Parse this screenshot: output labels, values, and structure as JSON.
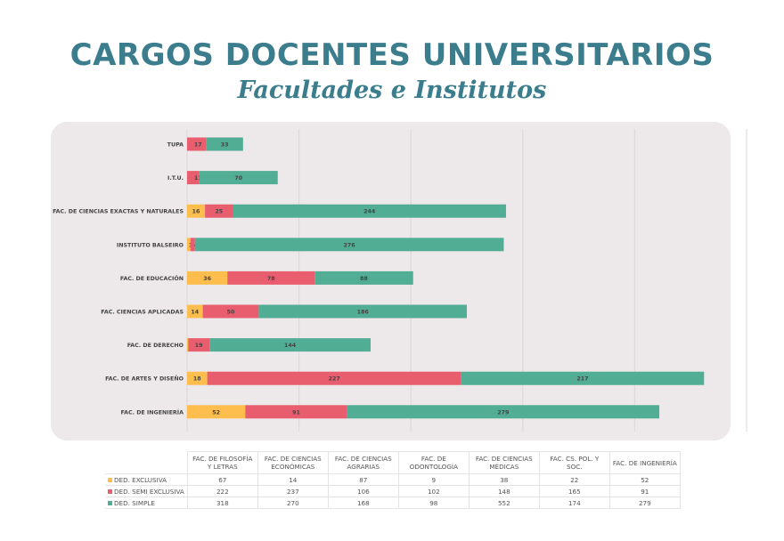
{
  "title": "CARGOS DOCENTES UNIVERSITARIOS",
  "subtitle": "Facultades e Institutos",
  "colors": {
    "exclusiva": "#fdbe4e",
    "semi": "#e95e6f",
    "simple": "#52ad95",
    "title": "#3b7d8d"
  },
  "chart_data": {
    "type": "bar",
    "orientation": "horizontal",
    "stacked": true,
    "grid": true,
    "xlim": [
      0,
      500
    ],
    "categories": [
      "TUPA",
      "I.T.U.",
      "FAC. DE CIENCIAS EXACTAS Y NATURALES",
      "INSTITUTO BALSEIRO",
      "FAC. DE EDUCACIÓN",
      "FAC. CIENCIAS APLICADAS",
      "FAC. DE DERECHO",
      "FAC. DE ARTES Y DISEÑO",
      "FAC. DE INGENIERÍA"
    ],
    "series": [
      {
        "name": "DED. EXCLUSIVA",
        "values": [
          0,
          0,
          16,
          3,
          36,
          14,
          1,
          18,
          52
        ]
      },
      {
        "name": "DED. SEMI EXCLUSIVA",
        "values": [
          17,
          11,
          25,
          4,
          78,
          50,
          19,
          227,
          91
        ]
      },
      {
        "name": "DED. SIMPLE",
        "values": [
          33,
          70,
          244,
          276,
          88,
          186,
          144,
          217,
          279
        ]
      }
    ]
  },
  "table": {
    "headers": [
      "FAC. DE FILOSOFÍA Y LETRAS",
      "FAC. DE CIENCIAS ECONÓMICAS",
      "FAC. DE CIENCIAS AGRARIAS",
      "FAC. DE ODONTOLOGÍA",
      "FAC. DE CIENCIAS MÉDICAS",
      "FAC. CS. POL. Y SOC.",
      "FAC. DE INGENIERÍA"
    ],
    "rows": [
      {
        "label": "DED. EXCLUSIVA",
        "values": [
          "67",
          "14",
          "87",
          "9",
          "38",
          "22",
          "52"
        ]
      },
      {
        "label": "DED. SEMI EXCLUSIVA",
        "values": [
          "222",
          "237",
          "106",
          "102",
          "148",
          "165",
          "91"
        ]
      },
      {
        "label": "DED. SIMPLE",
        "values": [
          "318",
          "270",
          "168",
          "98",
          "552",
          "174",
          "279"
        ]
      }
    ]
  }
}
